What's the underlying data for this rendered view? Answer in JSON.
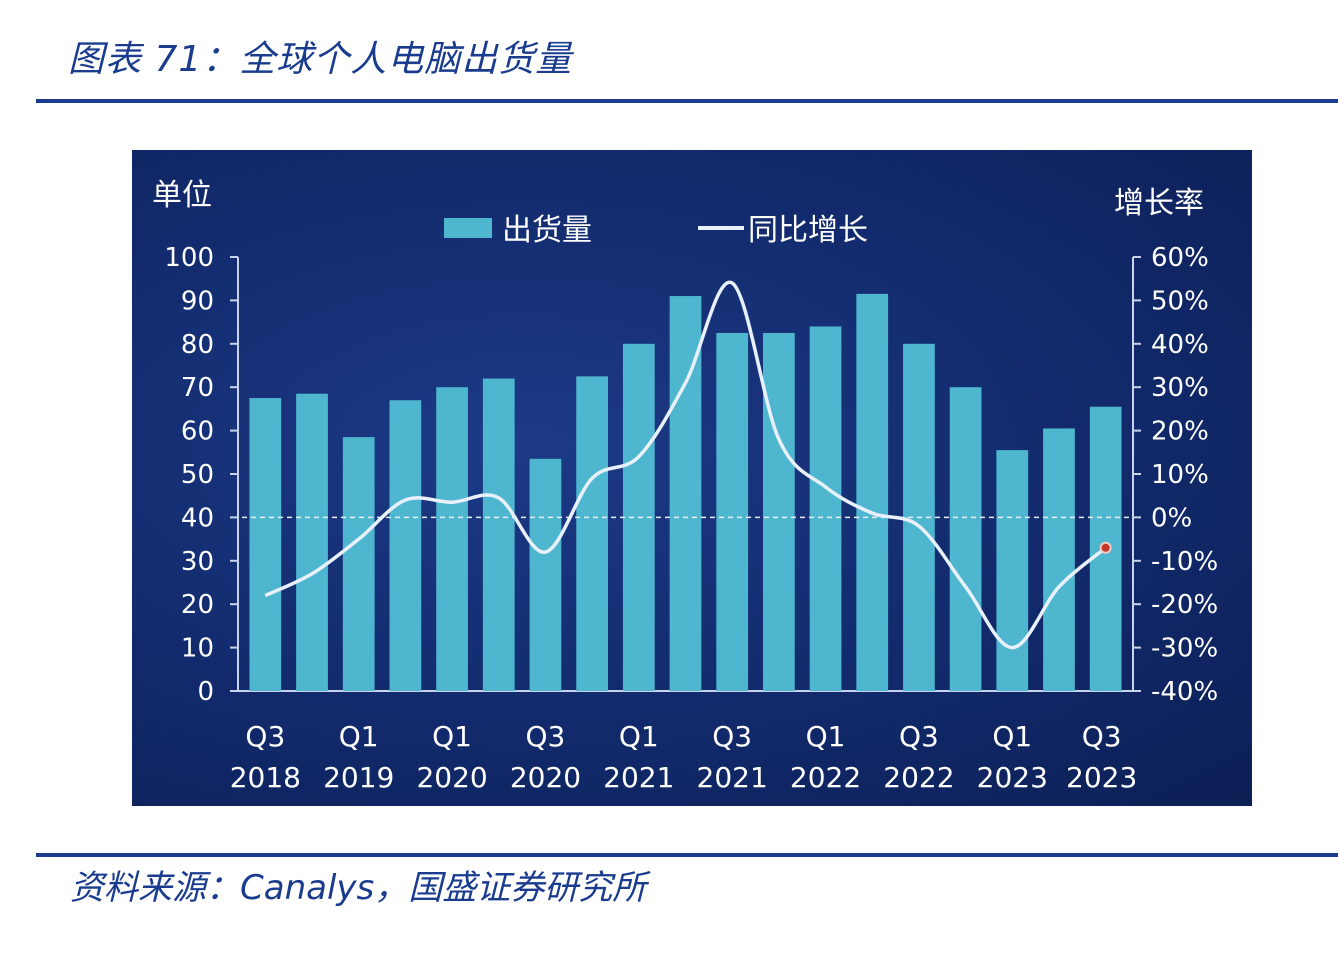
{
  "title": "图表 71：全球个人电脑出货量",
  "source": "资料来源：Canalys，国盛证券研究所",
  "chart_data": {
    "type": "bar",
    "left_axis_label": "单位",
    "right_axis_label": "增长率",
    "legend": {
      "bar": "出货量",
      "line": "同比增长"
    },
    "left_ticks": [
      "0",
      "10",
      "20",
      "30",
      "40",
      "50",
      "60",
      "70",
      "80",
      "90",
      "100"
    ],
    "right_ticks": [
      "-40%",
      "-30%",
      "-20%",
      "-10%",
      "0%",
      "10%",
      "20%",
      "30%",
      "40%",
      "50%",
      "60%"
    ],
    "ylim_left": [
      0,
      100
    ],
    "ylim_right": [
      -40,
      60
    ],
    "x_tick_labels": [
      {
        "q": "Q3",
        "y": "2018"
      },
      {
        "q": "Q1",
        "y": "2019"
      },
      {
        "q": "Q1",
        "y": "2020"
      },
      {
        "q": "Q3",
        "y": "2020"
      },
      {
        "q": "Q1",
        "y": "2021"
      },
      {
        "q": "Q3",
        "y": "2021"
      },
      {
        "q": "Q1",
        "y": "2022"
      },
      {
        "q": "Q3",
        "y": "2022"
      },
      {
        "q": "Q1",
        "y": "2023"
      },
      {
        "q": "Q3",
        "y": "2023"
      }
    ],
    "series": [
      {
        "name": "出货量",
        "type": "bar",
        "values": [
          67.5,
          68.5,
          58.5,
          67,
          70,
          72,
          53.5,
          72.5,
          80,
          91,
          82.5,
          82.5,
          84,
          91.5,
          80,
          70,
          55.5,
          60.5,
          65.5
        ]
      },
      {
        "name": "同比增长",
        "type": "line",
        "unit": "%",
        "values": [
          -18,
          -13,
          -5,
          4,
          3.5,
          4.5,
          -8,
          9,
          14,
          31,
          54,
          18,
          7,
          1,
          -2,
          -16,
          -30,
          -16,
          -7
        ]
      }
    ],
    "colors": {
      "bar": "#4fb6cf",
      "line": "#e8f0fb",
      "endpoint": "#c0392b",
      "background": "#122a6c"
    }
  }
}
